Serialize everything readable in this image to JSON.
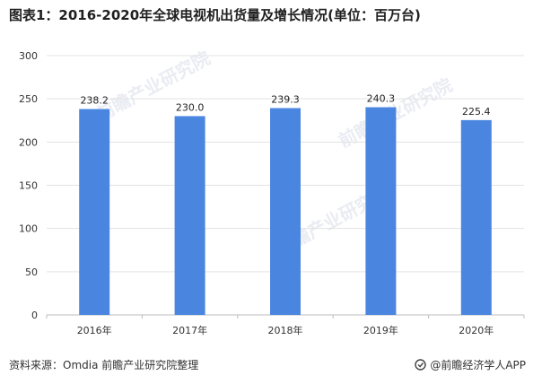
{
  "title": "图表1：2016-2020年全球电视机出货量及增长情况(单位：百万台)",
  "source": "资料来源：Omdia 前瞻产业研究院整理",
  "brand": "@前瞻经济学人APP",
  "watermark_text": "前瞻产业研究院",
  "colors": {
    "bar": "#4a86e0",
    "grid": "#e3e3e3",
    "axis": "#bdbdbd"
  },
  "chart_data": {
    "type": "bar",
    "categories": [
      "2016年",
      "2017年",
      "2018年",
      "2019年",
      "2020年"
    ],
    "values": [
      238.2,
      230.0,
      239.3,
      240.3,
      225.4
    ],
    "value_labels": [
      "238.2",
      "230.0",
      "239.3",
      "240.3",
      "225.4"
    ],
    "title": "图表1：2016-2020年全球电视机出货量及增长情况(单位：百万台)",
    "xlabel": "",
    "ylabel": "",
    "ylim": [
      0,
      300
    ],
    "yticks": [
      0,
      50,
      100,
      150,
      200,
      250,
      300
    ],
    "grid": true,
    "legend": "none"
  }
}
